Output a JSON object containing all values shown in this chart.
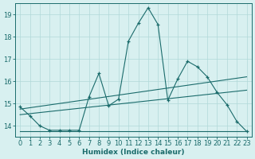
{
  "xlabel": "Humidex (Indice chaleur)",
  "x_data": [
    0,
    1,
    2,
    3,
    4,
    5,
    6,
    7,
    8,
    9,
    10,
    11,
    12,
    13,
    14,
    15,
    16,
    17,
    18,
    19,
    20,
    21,
    22,
    23
  ],
  "y_main": [
    14.85,
    14.45,
    14.0,
    13.8,
    13.8,
    13.8,
    13.8,
    15.3,
    16.35,
    14.9,
    15.2,
    17.8,
    18.6,
    19.3,
    18.55,
    15.15,
    16.1,
    16.9,
    16.65,
    16.2,
    15.5,
    14.95,
    14.2,
    13.75
  ],
  "trend1_x": [
    0,
    23
  ],
  "trend1_y": [
    14.75,
    16.2
  ],
  "trend2_x": [
    0,
    23
  ],
  "trend2_y": [
    14.5,
    15.6
  ],
  "trend3_x": [
    0,
    23
  ],
  "trend3_y": [
    13.75,
    13.75
  ],
  "ylim": [
    13.5,
    19.5
  ],
  "xlim": [
    -0.5,
    23.5
  ],
  "yticks": [
    14,
    15,
    16,
    17,
    18,
    19
  ],
  "xticks": [
    0,
    1,
    2,
    3,
    4,
    5,
    6,
    7,
    8,
    9,
    10,
    11,
    12,
    13,
    14,
    15,
    16,
    17,
    18,
    19,
    20,
    21,
    22,
    23
  ],
  "line_color": "#1a6b6b",
  "bg_color": "#d8f0f0",
  "grid_color": "#b0d8d8",
  "xlabel_fontsize": 6.5,
  "tick_fontsize": 6.0
}
